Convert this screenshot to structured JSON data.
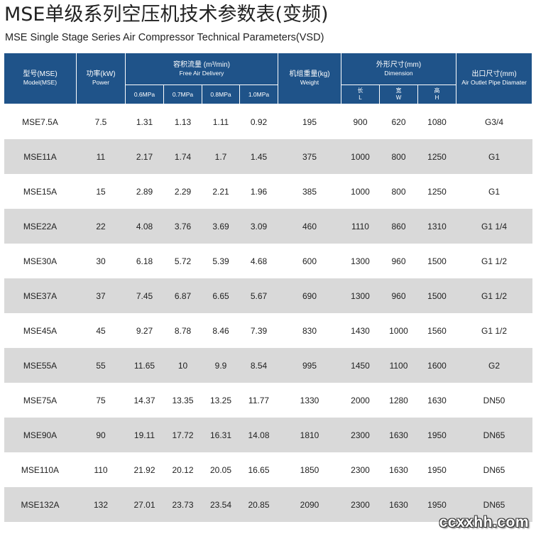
{
  "title_cn": "MSE单级系列空压机技术参数表(变频)",
  "title_en": "MSE Single Stage Series Air Compressor Technical Parameters(VSD)",
  "headers": {
    "model": {
      "cn": "型号(MSE)",
      "en": "Model(MSE)"
    },
    "power": {
      "cn": "功率(kW)",
      "en": "Power"
    },
    "flow": {
      "cn": "容积流量 (m³/min)",
      "en": "Free Air Delivery"
    },
    "weight": {
      "cn": "机组重量(kg)",
      "en": "Weight"
    },
    "dimension": {
      "cn": "外形尺寸(mm)",
      "en": "Dimension"
    },
    "outlet": {
      "cn": "出口尺寸(mm)",
      "en": "Air Outlet Pipe Diamater"
    },
    "pressures": [
      "0.6MPa",
      "0.7MPa",
      "0.8MPa",
      "1.0MPa"
    ],
    "dims": [
      {
        "cn": "长",
        "en": "L"
      },
      {
        "cn": "宽",
        "en": "W"
      },
      {
        "cn": "高",
        "en": "H"
      }
    ]
  },
  "rows": [
    {
      "model": "MSE7.5A",
      "power": "7.5",
      "f06": "1.31",
      "f07": "1.13",
      "f08": "1.11",
      "f10": "0.92",
      "weight": "195",
      "l": "900",
      "w": "620",
      "h": "1080",
      "outlet": "G3/4"
    },
    {
      "model": "MSE11A",
      "power": "11",
      "f06": "2.17",
      "f07": "1.74",
      "f08": "1.7",
      "f10": "1.45",
      "weight": "375",
      "l": "1000",
      "w": "800",
      "h": "1250",
      "outlet": "G1"
    },
    {
      "model": "MSE15A",
      "power": "15",
      "f06": "2.89",
      "f07": "2.29",
      "f08": "2.21",
      "f10": "1.96",
      "weight": "385",
      "l": "1000",
      "w": "800",
      "h": "1250",
      "outlet": "G1"
    },
    {
      "model": "MSE22A",
      "power": "22",
      "f06": "4.08",
      "f07": "3.76",
      "f08": "3.69",
      "f10": "3.09",
      "weight": "460",
      "l": "1110",
      "w": "860",
      "h": "1310",
      "outlet": "G1 1/4"
    },
    {
      "model": "MSE30A",
      "power": "30",
      "f06": "6.18",
      "f07": "5.72",
      "f08": "5.39",
      "f10": "4.68",
      "weight": "600",
      "l": "1300",
      "w": "960",
      "h": "1500",
      "outlet": "G1 1/2"
    },
    {
      "model": "MSE37A",
      "power": "37",
      "f06": "7.45",
      "f07": "6.87",
      "f08": "6.65",
      "f10": "5.67",
      "weight": "690",
      "l": "1300",
      "w": "960",
      "h": "1500",
      "outlet": "G1 1/2"
    },
    {
      "model": "MSE45A",
      "power": "45",
      "f06": "9.27",
      "f07": "8.78",
      "f08": "8.46",
      "f10": "7.39",
      "weight": "830",
      "l": "1430",
      "w": "1000",
      "h": "1560",
      "outlet": "G1 1/2"
    },
    {
      "model": "MSE55A",
      "power": "55",
      "f06": "11.65",
      "f07": "10",
      "f08": "9.9",
      "f10": "8.54",
      "weight": "995",
      "l": "1450",
      "w": "1100",
      "h": "1600",
      "outlet": "G2"
    },
    {
      "model": "MSE75A",
      "power": "75",
      "f06": "14.37",
      "f07": "13.35",
      "f08": "13.25",
      "f10": "11.77",
      "weight": "1330",
      "l": "2000",
      "w": "1280",
      "h": "1630",
      "outlet": "DN50"
    },
    {
      "model": "MSE90A",
      "power": "90",
      "f06": "19.11",
      "f07": "17.72",
      "f08": "16.31",
      "f10": "14.08",
      "weight": "1810",
      "l": "2300",
      "w": "1630",
      "h": "1950",
      "outlet": "DN65"
    },
    {
      "model": "MSE110A",
      "power": "110",
      "f06": "21.92",
      "f07": "20.12",
      "f08": "20.05",
      "f10": "16.65",
      "weight": "1850",
      "l": "2300",
      "w": "1630",
      "h": "1950",
      "outlet": "DN65"
    },
    {
      "model": "MSE132A",
      "power": "132",
      "f06": "27.01",
      "f07": "23.73",
      "f08": "23.54",
      "f10": "20.85",
      "weight": "2090",
      "l": "2300",
      "w": "1630",
      "h": "1950",
      "outlet": "DN65"
    }
  ],
  "watermark": "ccxxhh.com"
}
